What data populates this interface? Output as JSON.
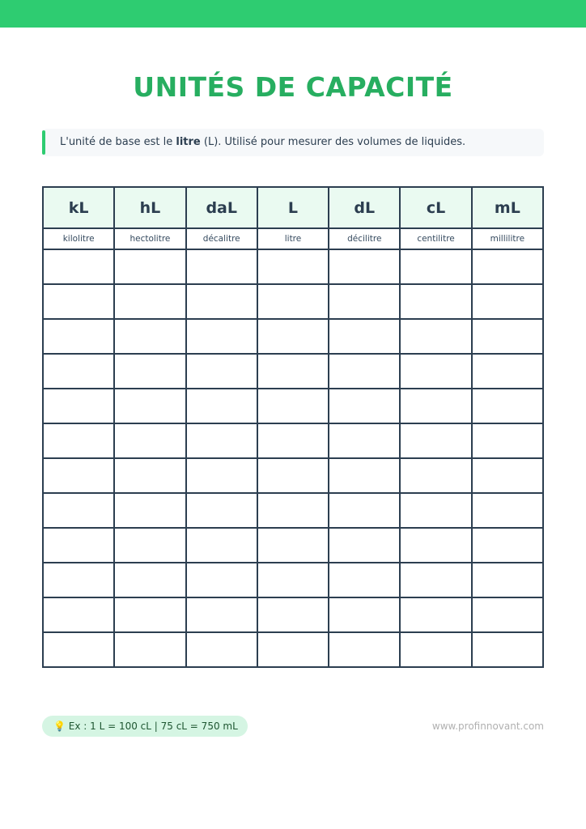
{
  "colors": {
    "accent": "#2ecc71",
    "title": "#27ae60",
    "grid": "#2c3e50",
    "header_bg": "#eafaf1",
    "tip_bg": "#d5f5e3"
  },
  "title": "UNITÉS DE CAPACITÉ",
  "intro": {
    "before": "L'unité de base est le ",
    "bold": "litre",
    "after": " (L). Utilisé pour mesurer des volumes de liquides."
  },
  "table": {
    "units": [
      "kL",
      "hL",
      "daL",
      "L",
      "dL",
      "cL",
      "mL"
    ],
    "names": [
      "kilolitre",
      "hectolitre",
      "décalitre",
      "litre",
      "décilitre",
      "centilitre",
      "millilitre"
    ],
    "empty_rows": 12
  },
  "footer": {
    "tip_icon": "lightbulb-icon",
    "tip_emoji": "💡",
    "tip": "Ex : 1 L = 100 cL | 75 cL = 750 mL",
    "website": "www.profinnovant.com"
  }
}
